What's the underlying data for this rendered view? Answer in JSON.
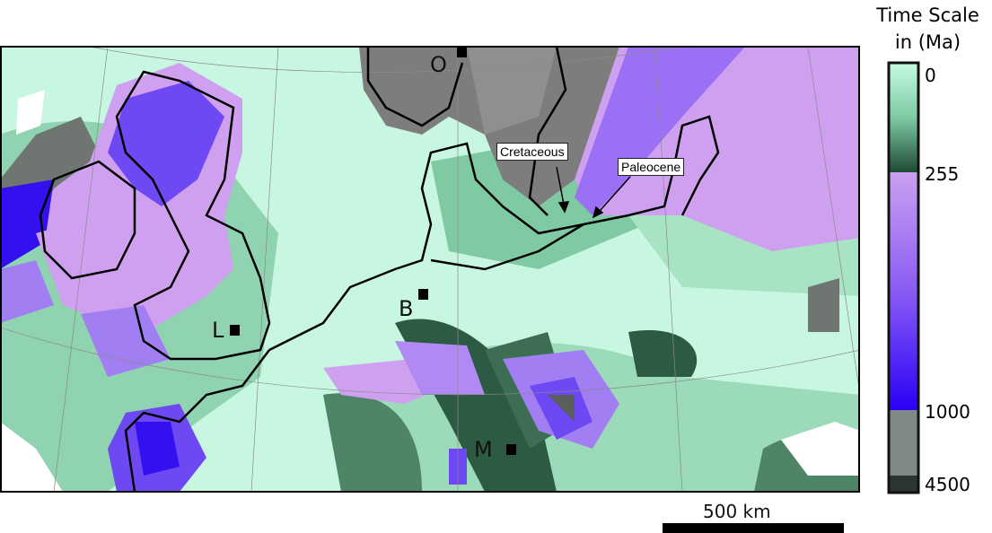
{
  "legend": {
    "title_line1": "Time Scale",
    "title_line2": "in (Ma)",
    "ticks": [
      "0",
      "255",
      "1000",
      "4500"
    ],
    "segments": [
      {
        "from": 0,
        "to": 255,
        "colors": [
          "#c4fbe0",
          "#7dc9a2",
          "#1f4a34"
        ]
      },
      {
        "from": 255,
        "to": 1000,
        "colors": [
          "#c9a0f0",
          "#8a5cf5",
          "#2a00f5"
        ]
      },
      {
        "from": 1000,
        "to": 4500,
        "colors": [
          "#7f8a86",
          "#2d3532"
        ]
      }
    ]
  },
  "markers": [
    {
      "label": "O"
    },
    {
      "label": "B"
    },
    {
      "label": "L"
    },
    {
      "label": "M"
    }
  ],
  "callouts": {
    "cretaceous": "Cretaceous",
    "paleocene": "Paleocene"
  },
  "scale_bar": {
    "label": "500 km"
  },
  "colors": {
    "young": "#c8f7e1",
    "mid_green": "#7fcaa3",
    "dark_green": "#2c5a42",
    "lilac": "#cfa0ef",
    "violet": "#8a5cf5",
    "blue": "#3210f0",
    "gray": "#7d7d7d",
    "coast": "#000000"
  }
}
